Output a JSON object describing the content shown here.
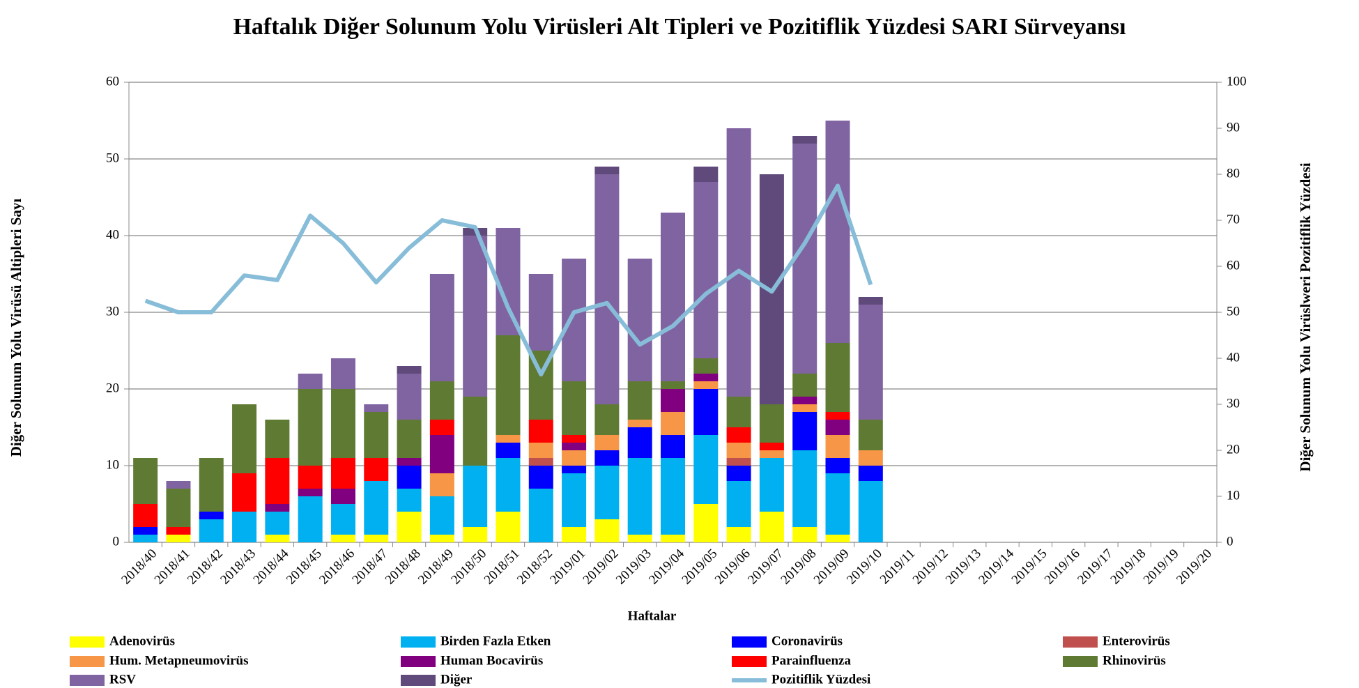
{
  "chart_data": {
    "type": "bar",
    "stacked": true,
    "title": "Haftalık Diğer Solunum Yolu Virüsleri Alt Tipleri ve Pozitiflik Yüzdesi SARI Sürveyansı",
    "x_label": "Haftalar",
    "y_label": "Diğer Solunum Yolu Virüsü Altipleri Sayı",
    "y2_label": "Diğer Solunum Yolu Virüslweri Pozitiflik Yüzdesi",
    "categories": [
      "2018/40",
      "2018/41",
      "2018/42",
      "2018/43",
      "2018/44",
      "2018/45",
      "2018/46",
      "2018/47",
      "2018/48",
      "2018/49",
      "2018/50",
      "2018/51",
      "2018/52",
      "2019/01",
      "2019/02",
      "2019/03",
      "2019/04",
      "2019/05",
      "2019/06",
      "2019/07",
      "2019/08",
      "2019/09",
      "2019/10",
      "2019/11",
      "2019/12",
      "2019/13",
      "2019/14",
      "2019/15",
      "2019/16",
      "2019/17",
      "2019/18",
      "2019/19",
      "2019/20"
    ],
    "ylim": [
      0,
      60
    ],
    "yticks": [
      0,
      10,
      20,
      30,
      40,
      50,
      60
    ],
    "y2lim": [
      0,
      100
    ],
    "y2ticks": [
      0,
      10,
      20,
      30,
      40,
      50,
      60,
      70,
      80,
      90,
      100
    ],
    "grid": true,
    "legend": "bottom",
    "series": [
      {
        "name": "Adenovirüs",
        "color": "#ffff00",
        "values": [
          0,
          1,
          0,
          0,
          1,
          0,
          1,
          1,
          4,
          1,
          2,
          4,
          0,
          2,
          3,
          1,
          1,
          5,
          2,
          4,
          2,
          1,
          0,
          null,
          null,
          null,
          null,
          null,
          null,
          null,
          null,
          null,
          null
        ]
      },
      {
        "name": "Birden Fazla Etken",
        "color": "#00b0f0",
        "values": [
          1,
          0,
          3,
          4,
          3,
          6,
          4,
          7,
          3,
          5,
          8,
          7,
          7,
          7,
          7,
          10,
          10,
          9,
          6,
          7,
          10,
          8,
          8,
          null,
          null,
          null,
          null,
          null,
          null,
          null,
          null,
          null,
          null
        ]
      },
      {
        "name": "Coronavirüs",
        "color": "#0000ff",
        "values": [
          1,
          0,
          1,
          0,
          0,
          0,
          0,
          0,
          3,
          0,
          0,
          2,
          3,
          1,
          2,
          4,
          3,
          6,
          2,
          0,
          5,
          2,
          2,
          null,
          null,
          null,
          null,
          null,
          null,
          null,
          null,
          null,
          null
        ]
      },
      {
        "name": "Enterovirüs",
        "color": "#c0504d",
        "values": [
          0,
          0,
          0,
          0,
          0,
          0,
          0,
          0,
          0,
          0,
          0,
          0,
          1,
          0,
          0,
          0,
          0,
          0,
          1,
          0,
          0,
          0,
          0,
          null,
          null,
          null,
          null,
          null,
          null,
          null,
          null,
          null,
          null
        ]
      },
      {
        "name": "Hum. Metapneumovirüs",
        "color": "#f79646",
        "values": [
          0,
          0,
          0,
          0,
          0,
          0,
          0,
          0,
          0,
          3,
          0,
          1,
          2,
          2,
          2,
          1,
          3,
          1,
          2,
          1,
          1,
          3,
          2,
          null,
          null,
          null,
          null,
          null,
          null,
          null,
          null,
          null,
          null
        ]
      },
      {
        "name": "Human Bocavirüs",
        "color": "#800080",
        "values": [
          0,
          0,
          0,
          0,
          1,
          1,
          2,
          0,
          1,
          5,
          0,
          0,
          0,
          1,
          0,
          0,
          3,
          1,
          0,
          0,
          1,
          2,
          0,
          null,
          null,
          null,
          null,
          null,
          null,
          null,
          null,
          null,
          null
        ]
      },
      {
        "name": "Parainfluenza",
        "color": "#ff0000",
        "values": [
          3,
          1,
          0,
          5,
          6,
          3,
          4,
          3,
          0,
          2,
          0,
          0,
          3,
          1,
          0,
          0,
          0,
          0,
          2,
          1,
          0,
          1,
          0,
          null,
          null,
          null,
          null,
          null,
          null,
          null,
          null,
          null,
          null
        ]
      },
      {
        "name": "Rhinovirüs",
        "color": "#5f7a33",
        "values": [
          6,
          5,
          7,
          9,
          5,
          10,
          9,
          6,
          5,
          5,
          9,
          13,
          9,
          7,
          4,
          5,
          1,
          2,
          4,
          5,
          3,
          9,
          4,
          null,
          null,
          null,
          null,
          null,
          null,
          null,
          null,
          null,
          null
        ]
      },
      {
        "name": "RSV",
        "color": "#8064a2",
        "values": [
          0,
          1,
          0,
          0,
          0,
          2,
          4,
          1,
          6,
          14,
          21,
          14,
          10,
          16,
          30,
          16,
          22,
          23,
          35,
          0,
          30,
          29,
          15,
          null,
          null,
          null,
          null,
          null,
          null,
          null,
          null,
          null,
          null
        ]
      },
      {
        "name": "Diğer",
        "color": "#604a7b",
        "values": [
          0,
          0,
          0,
          0,
          0,
          0,
          0,
          0,
          1,
          0,
          1,
          0,
          0,
          0,
          1,
          0,
          0,
          2,
          0,
          30,
          1,
          0,
          1,
          null,
          null,
          null,
          null,
          null,
          null,
          null,
          null,
          null,
          null
        ]
      },
      {
        "name": "Pozitiflik Yüzdesi",
        "color": "#87bdd8",
        "type": "line",
        "axis": "y2",
        "values": [
          52.5,
          50,
          50,
          58,
          57,
          71,
          65,
          56.5,
          64,
          70,
          68.5,
          51,
          36.5,
          50,
          52,
          43,
          47,
          54,
          59,
          54.5,
          65,
          77.5,
          56,
          null,
          null,
          null,
          null,
          null,
          null,
          null,
          null,
          null,
          null
        ]
      }
    ]
  }
}
